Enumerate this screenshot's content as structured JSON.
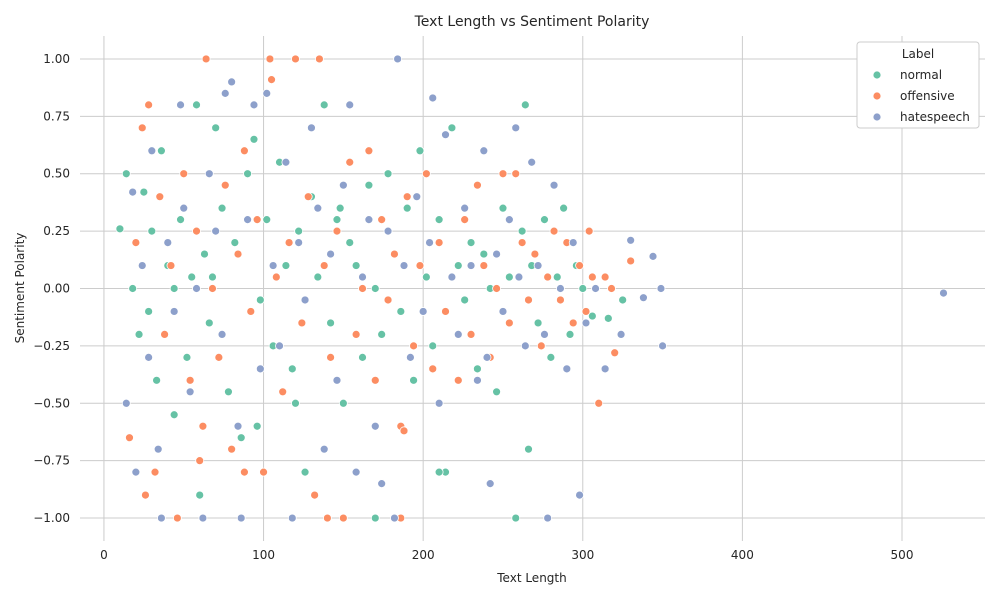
{
  "chart_data": {
    "type": "scatter",
    "title": "Text Length vs Sentiment Polarity",
    "xlabel": "Text Length",
    "ylabel": "Sentiment Polarity",
    "xlim": [
      -15,
      552
    ],
    "ylim": [
      -1.1,
      1.1
    ],
    "x_ticks": [
      0,
      100,
      200,
      300,
      400,
      500
    ],
    "y_ticks": [
      -1.0,
      -0.75,
      -0.5,
      -0.25,
      0.0,
      0.25,
      0.5,
      0.75,
      1.0
    ],
    "x_tick_labels": [
      "0",
      "100",
      "200",
      "300",
      "400",
      "500"
    ],
    "y_tick_labels": [
      "−1.00",
      "−0.75",
      "−0.50",
      "−0.25",
      "0.00",
      "0.25",
      "0.50",
      "0.75",
      "1.00"
    ],
    "grid": true,
    "legend": {
      "title": "Label",
      "placement": "top-right"
    },
    "series": [
      {
        "name": "normal",
        "color": "#66c2a5",
        "points": [
          [
            10,
            0.26
          ],
          [
            14,
            0.5
          ],
          [
            18,
            0.0
          ],
          [
            22,
            -0.2
          ],
          [
            25,
            0.42
          ],
          [
            28,
            -0.1
          ],
          [
            30,
            0.25
          ],
          [
            33,
            -0.4
          ],
          [
            36,
            0.6
          ],
          [
            40,
            0.1
          ],
          [
            44,
            -0.55
          ],
          [
            48,
            0.3
          ],
          [
            52,
            -0.3
          ],
          [
            55,
            0.05
          ],
          [
            58,
            0.8
          ],
          [
            60,
            -0.9
          ],
          [
            63,
            0.15
          ],
          [
            66,
            -0.15
          ],
          [
            70,
            0.7
          ],
          [
            74,
            0.35
          ],
          [
            78,
            -0.45
          ],
          [
            82,
            0.2
          ],
          [
            86,
            -0.65
          ],
          [
            90,
            0.5
          ],
          [
            94,
            0.65
          ],
          [
            98,
            -0.05
          ],
          [
            102,
            0.3
          ],
          [
            106,
            -0.25
          ],
          [
            110,
            0.55
          ],
          [
            114,
            0.1
          ],
          [
            118,
            -0.35
          ],
          [
            122,
            0.25
          ],
          [
            126,
            -0.8
          ],
          [
            130,
            0.4
          ],
          [
            134,
            0.05
          ],
          [
            138,
            0.8
          ],
          [
            142,
            -0.15
          ],
          [
            146,
            0.3
          ],
          [
            150,
            -0.5
          ],
          [
            154,
            0.2
          ],
          [
            158,
            0.1
          ],
          [
            162,
            -0.3
          ],
          [
            166,
            0.45
          ],
          [
            170,
            0.0
          ],
          [
            174,
            -0.2
          ],
          [
            178,
            0.5
          ],
          [
            182,
            0.15
          ],
          [
            186,
            -0.1
          ],
          [
            190,
            0.35
          ],
          [
            194,
            -0.4
          ],
          [
            198,
            0.6
          ],
          [
            202,
            0.05
          ],
          [
            206,
            -0.25
          ],
          [
            210,
            0.3
          ],
          [
            214,
            -0.8
          ],
          [
            218,
            0.7
          ],
          [
            222,
            0.1
          ],
          [
            226,
            -0.05
          ],
          [
            230,
            0.2
          ],
          [
            234,
            -0.35
          ],
          [
            238,
            0.15
          ],
          [
            242,
            0.0
          ],
          [
            246,
            -0.45
          ],
          [
            250,
            0.35
          ],
          [
            254,
            0.05
          ],
          [
            258,
            -1.0
          ],
          [
            262,
            0.25
          ],
          [
            264,
            0.8
          ],
          [
            266,
            -0.7
          ],
          [
            268,
            0.1
          ],
          [
            272,
            -0.15
          ],
          [
            276,
            0.3
          ],
          [
            280,
            -0.3
          ],
          [
            284,
            0.05
          ],
          [
            288,
            0.35
          ],
          [
            292,
            -0.2
          ],
          [
            296,
            0.1
          ],
          [
            300,
            0.0
          ],
          [
            306,
            -0.12
          ],
          [
            316,
            -0.13
          ],
          [
            325,
            -0.05
          ],
          [
            44,
            0.0
          ],
          [
            68,
            0.05
          ],
          [
            96,
            -0.6
          ],
          [
            120,
            -0.5
          ],
          [
            148,
            0.35
          ],
          [
            170,
            -1.0
          ],
          [
            210,
            -0.8
          ]
        ]
      },
      {
        "name": "offensive",
        "color": "#fc8d62",
        "points": [
          [
            16,
            -0.65
          ],
          [
            20,
            0.2
          ],
          [
            24,
            0.7
          ],
          [
            26,
            -0.9
          ],
          [
            28,
            0.8
          ],
          [
            32,
            -0.8
          ],
          [
            35,
            0.4
          ],
          [
            38,
            -0.2
          ],
          [
            42,
            0.1
          ],
          [
            46,
            -1.0
          ],
          [
            50,
            0.5
          ],
          [
            54,
            -0.4
          ],
          [
            58,
            0.25
          ],
          [
            62,
            -0.6
          ],
          [
            64,
            1.0
          ],
          [
            68,
            0.0
          ],
          [
            72,
            -0.3
          ],
          [
            76,
            0.45
          ],
          [
            80,
            -0.7
          ],
          [
            84,
            0.15
          ],
          [
            88,
            0.6
          ],
          [
            92,
            -0.1
          ],
          [
            96,
            0.3
          ],
          [
            100,
            -0.8
          ],
          [
            104,
            1.0
          ],
          [
            105,
            0.91
          ],
          [
            108,
            0.05
          ],
          [
            112,
            -0.45
          ],
          [
            116,
            0.2
          ],
          [
            120,
            1.0
          ],
          [
            124,
            -0.15
          ],
          [
            128,
            0.4
          ],
          [
            132,
            -0.9
          ],
          [
            135,
            1.0
          ],
          [
            138,
            0.1
          ],
          [
            142,
            -0.3
          ],
          [
            146,
            0.25
          ],
          [
            150,
            -1.0
          ],
          [
            154,
            0.55
          ],
          [
            158,
            -0.2
          ],
          [
            162,
            0.0
          ],
          [
            166,
            0.6
          ],
          [
            170,
            -0.4
          ],
          [
            174,
            0.3
          ],
          [
            178,
            -0.05
          ],
          [
            182,
            0.15
          ],
          [
            186,
            -0.6
          ],
          [
            190,
            0.4
          ],
          [
            194,
            -0.25
          ],
          [
            198,
            0.1
          ],
          [
            202,
            0.5
          ],
          [
            206,
            -0.35
          ],
          [
            210,
            0.2
          ],
          [
            214,
            -0.1
          ],
          [
            218,
            0.05
          ],
          [
            222,
            -0.4
          ],
          [
            226,
            0.3
          ],
          [
            230,
            -0.2
          ],
          [
            234,
            0.45
          ],
          [
            238,
            0.1
          ],
          [
            242,
            -0.3
          ],
          [
            246,
            0.0
          ],
          [
            250,
            0.5
          ],
          [
            254,
            -0.15
          ],
          [
            258,
            0.5
          ],
          [
            262,
            0.2
          ],
          [
            266,
            -0.05
          ],
          [
            270,
            0.15
          ],
          [
            274,
            -0.25
          ],
          [
            278,
            0.05
          ],
          [
            282,
            0.25
          ],
          [
            286,
            -0.05
          ],
          [
            290,
            0.2
          ],
          [
            294,
            -0.15
          ],
          [
            298,
            0.1
          ],
          [
            302,
            -0.1
          ],
          [
            304,
            0.25
          ],
          [
            306,
            0.05
          ],
          [
            310,
            -0.5
          ],
          [
            314,
            0.05
          ],
          [
            318,
            0.0
          ],
          [
            320,
            -0.28
          ],
          [
            330,
            0.12
          ],
          [
            186,
            -1.0
          ],
          [
            188,
            -0.62
          ],
          [
            140,
            -1.0
          ],
          [
            60,
            -0.75
          ],
          [
            88,
            -0.8
          ]
        ]
      },
      {
        "name": "hatespeech",
        "color": "#8da0cb",
        "points": [
          [
            14,
            -0.5
          ],
          [
            18,
            0.42
          ],
          [
            20,
            -0.8
          ],
          [
            24,
            0.1
          ],
          [
            28,
            -0.3
          ],
          [
            30,
            0.6
          ],
          [
            34,
            -0.7
          ],
          [
            36,
            -1.0
          ],
          [
            40,
            0.2
          ],
          [
            44,
            -0.1
          ],
          [
            48,
            0.8
          ],
          [
            50,
            0.35
          ],
          [
            54,
            -0.45
          ],
          [
            58,
            0.0
          ],
          [
            62,
            -1.0
          ],
          [
            66,
            0.5
          ],
          [
            70,
            0.25
          ],
          [
            74,
            -0.2
          ],
          [
            76,
            0.85
          ],
          [
            80,
            0.9
          ],
          [
            84,
            -0.6
          ],
          [
            86,
            -1.0
          ],
          [
            90,
            0.3
          ],
          [
            94,
            0.8
          ],
          [
            98,
            -0.35
          ],
          [
            102,
            0.85
          ],
          [
            106,
            0.1
          ],
          [
            110,
            -0.25
          ],
          [
            114,
            0.55
          ],
          [
            118,
            -1.0
          ],
          [
            122,
            0.2
          ],
          [
            126,
            -0.05
          ],
          [
            130,
            0.7
          ],
          [
            134,
            0.35
          ],
          [
            138,
            -0.7
          ],
          [
            142,
            0.15
          ],
          [
            146,
            -0.4
          ],
          [
            150,
            0.45
          ],
          [
            154,
            0.8
          ],
          [
            158,
            -0.8
          ],
          [
            162,
            0.05
          ],
          [
            166,
            0.3
          ],
          [
            170,
            -0.6
          ],
          [
            174,
            -0.85
          ],
          [
            178,
            0.25
          ],
          [
            182,
            -1.0
          ],
          [
            184,
            1.0
          ],
          [
            188,
            0.1
          ],
          [
            192,
            -0.3
          ],
          [
            196,
            0.4
          ],
          [
            200,
            -0.1
          ],
          [
            204,
            0.2
          ],
          [
            206,
            0.83
          ],
          [
            210,
            -0.5
          ],
          [
            214,
            0.67
          ],
          [
            218,
            0.05
          ],
          [
            222,
            -0.2
          ],
          [
            226,
            0.35
          ],
          [
            230,
            0.1
          ],
          [
            234,
            -0.4
          ],
          [
            238,
            0.6
          ],
          [
            240,
            -0.3
          ],
          [
            242,
            -0.85
          ],
          [
            246,
            0.15
          ],
          [
            250,
            -0.1
          ],
          [
            254,
            0.3
          ],
          [
            258,
            0.7
          ],
          [
            260,
            0.05
          ],
          [
            264,
            -0.25
          ],
          [
            268,
            0.55
          ],
          [
            272,
            0.1
          ],
          [
            276,
            -0.2
          ],
          [
            278,
            -1.0
          ],
          [
            282,
            0.45
          ],
          [
            286,
            0.0
          ],
          [
            290,
            -0.35
          ],
          [
            294,
            0.2
          ],
          [
            298,
            -0.9
          ],
          [
            302,
            -0.15
          ],
          [
            308,
            0.0
          ],
          [
            314,
            -0.35
          ],
          [
            324,
            -0.2
          ],
          [
            330,
            0.21
          ],
          [
            338,
            -0.04
          ],
          [
            344,
            0.14
          ],
          [
            349,
            0.0
          ],
          [
            350,
            -0.25
          ],
          [
            526,
            -0.02
          ]
        ]
      }
    ]
  }
}
